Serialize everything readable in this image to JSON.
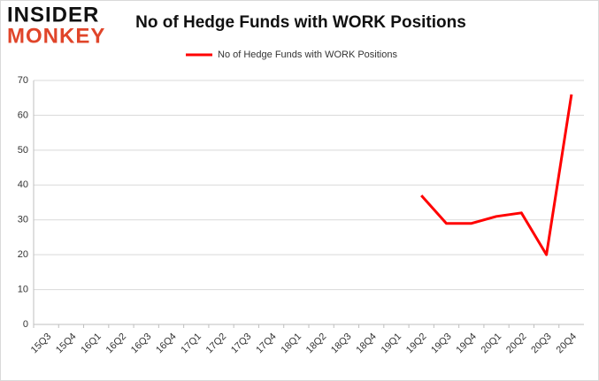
{
  "logo": {
    "top": "INSIDER",
    "bottom": "MONKEY"
  },
  "chart_data": {
    "type": "line",
    "title": "No of Hedge Funds with WORK Positions",
    "categories": [
      "15Q3",
      "15Q4",
      "16Q1",
      "16Q2",
      "16Q3",
      "16Q4",
      "17Q1",
      "17Q2",
      "17Q3",
      "17Q4",
      "18Q1",
      "18Q2",
      "18Q3",
      "18Q4",
      "19Q1",
      "19Q2",
      "19Q3",
      "19Q4",
      "20Q1",
      "20Q2",
      "20Q3",
      "20Q4"
    ],
    "series": [
      {
        "name": "No of Hedge Funds with WORK Positions",
        "color": "#ff0000",
        "values": [
          null,
          null,
          null,
          null,
          null,
          null,
          null,
          null,
          null,
          null,
          null,
          null,
          null,
          null,
          null,
          37,
          29,
          29,
          31,
          32,
          20,
          66
        ]
      }
    ],
    "ylim": [
      0,
      70
    ],
    "yticks": [
      0,
      10,
      20,
      30,
      40,
      50,
      60,
      70
    ],
    "grid": true,
    "legend": "top"
  }
}
